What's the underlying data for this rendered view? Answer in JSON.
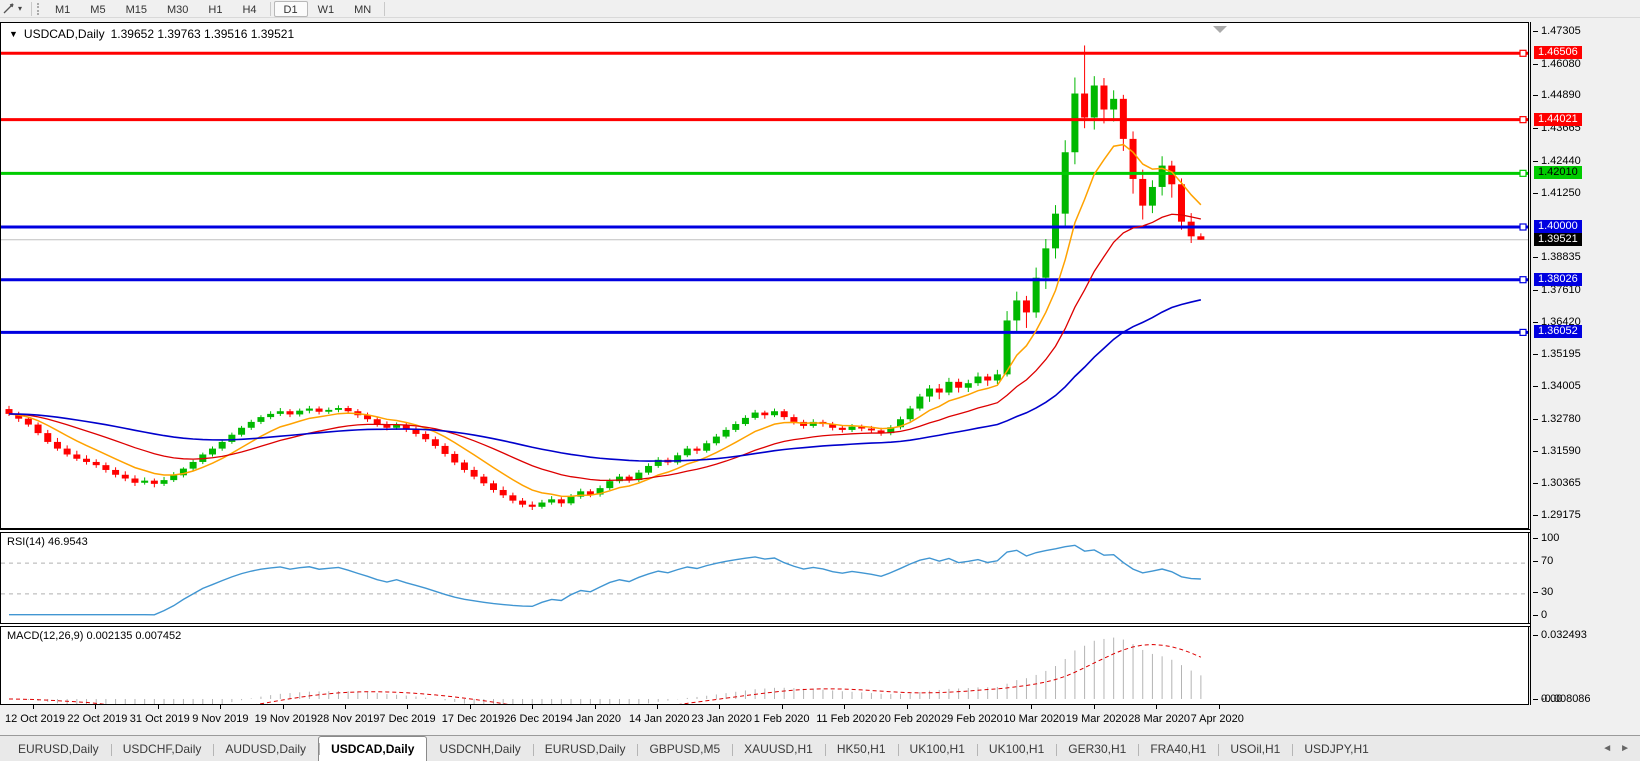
{
  "window": {
    "toolbar": {
      "timeframes": [
        "M1",
        "M5",
        "M15",
        "M30",
        "H1",
        "H4",
        "D1",
        "W1",
        "MN"
      ],
      "active_timeframe": "D1",
      "group_breaks_after": [
        "H4"
      ]
    },
    "tabs": {
      "items": [
        "EURUSD,Daily",
        "USDCHF,Daily",
        "AUDUSD,Daily",
        "USDCAD,Daily",
        "USDCNH,Daily",
        "EURUSD,Daily",
        "GBPUSD,M5",
        "XAUUSD,H1",
        "HK50,H1",
        "UK100,H1",
        "UK100,H1",
        "GER30,H1",
        "FRA40,H1",
        "USOil,H1",
        "USDJPY,H1"
      ],
      "active_index": 3
    }
  },
  "chart_title": {
    "symbol": "USDCAD,Daily",
    "ohlc": "1.39652 1.39763 1.39516 1.39521"
  },
  "chart_data": {
    "type": "candlestick",
    "symbol": "USDCAD",
    "timeframe": "Daily",
    "colors": {
      "up": "#00b800",
      "down": "#ff0000",
      "bg": "#ffffff",
      "current_price_line": "#c0c0c0",
      "ema_fast": "#ffa200",
      "ema_mid": "#dd0000",
      "ema_slow": "#0000cc",
      "rsi_line": "#4196d2",
      "rsi_level_dash": "#b0b0b0",
      "macd_bar": "#b4b4b4",
      "macd_signal": "#dd0000"
    },
    "y_axis": {
      "ticks": [
        "1.47305",
        "1.46080",
        "1.44890",
        "1.43665",
        "1.42440",
        "1.41250",
        "1.38835",
        "1.37610",
        "1.36420",
        "1.35195",
        "1.34005",
        "1.32780",
        "1.31590",
        "1.30365",
        "1.29175"
      ],
      "range_top": 1.47641,
      "range_bottom": 1.28726
    },
    "levels": [
      {
        "price": 1.46506,
        "label": "1.46506",
        "color": "#ff0000",
        "text_color": "#ffffff",
        "width": 3
      },
      {
        "price": 1.44021,
        "label": "1.44021",
        "color": "#ff0000",
        "text_color": "#ffffff",
        "width": 3
      },
      {
        "price": 1.4201,
        "label": "1.42010",
        "color": "#00cc00",
        "text_color": "#000000",
        "width": 3
      },
      {
        "price": 1.4,
        "label": "1.40000",
        "color": "#0000e0",
        "text_color": "#ffffff",
        "width": 3
      },
      {
        "price": 1.38026,
        "label": "1.38026",
        "color": "#0000e0",
        "text_color": "#ffffff",
        "width": 3
      },
      {
        "price": 1.36052,
        "label": "1.36052",
        "color": "#0000e0",
        "text_color": "#ffffff",
        "width": 3
      }
    ],
    "current_price": {
      "value": 1.39521,
      "label": "1.39521",
      "badge_bg": "#000000",
      "badge_fg": "#ffffff"
    },
    "x_labels": [
      "12 Oct 2019",
      "22 Oct 2019",
      "31 Oct 2019",
      "9 Nov 2019",
      "19 Nov 2019",
      "28 Nov 2019",
      "7 Dec 2019",
      "17 Dec 2019",
      "26 Dec 2019",
      "4 Jan 2020",
      "14 Jan 2020",
      "23 Jan 2020",
      "1 Feb 2020",
      "11 Feb 2020",
      "20 Feb 2020",
      "29 Feb 2020",
      "10 Mar 2020",
      "19 Mar 2020",
      "28 Mar 2020",
      "7 Apr 2020"
    ],
    "overlays": [
      {
        "type": "ema",
        "period": 8,
        "color": "#ffa200",
        "width": 1.5
      },
      {
        "type": "ema",
        "period": 21,
        "color": "#dd0000",
        "width": 1.3
      },
      {
        "type": "ema",
        "period": 55,
        "color": "#0000cc",
        "width": 1.6
      }
    ],
    "rsi": {
      "label": "RSI(14) 46.9543",
      "period": 14,
      "current": "46.9543",
      "ticks": [
        100,
        70,
        30,
        0
      ],
      "dashed_levels": [
        70,
        30
      ]
    },
    "macd": {
      "label": "MACD(12,26,9) 0.002135 0.007452",
      "fast": 12,
      "slow": 26,
      "signal": 9,
      "current_main": "0.002135",
      "current_signal": "0.007452",
      "ticks": [
        "0.032493",
        "0.00",
        "-0.008086"
      ],
      "range_max": 0.032493,
      "range_min": -0.008086
    },
    "candles": [
      [
        1.3318,
        1.333,
        1.3292,
        1.33
      ],
      [
        1.33,
        1.3308,
        1.327,
        1.3282
      ],
      [
        1.3282,
        1.329,
        1.3252,
        1.326
      ],
      [
        1.326,
        1.3268,
        1.322,
        1.3228
      ],
      [
        1.3228,
        1.324,
        1.3188,
        1.3195
      ],
      [
        1.3195,
        1.321,
        1.3162,
        1.317
      ],
      [
        1.317,
        1.3182,
        1.314,
        1.3148
      ],
      [
        1.3148,
        1.3162,
        1.3124,
        1.3132
      ],
      [
        1.3132,
        1.3145,
        1.311,
        1.312
      ],
      [
        1.312,
        1.313,
        1.3098,
        1.3108
      ],
      [
        1.3108,
        1.3118,
        1.308,
        1.309
      ],
      [
        1.309,
        1.31,
        1.3062,
        1.3072
      ],
      [
        1.3072,
        1.3085,
        1.3048,
        1.3058
      ],
      [
        1.3058,
        1.307,
        1.303,
        1.3042
      ],
      [
        1.3042,
        1.3062,
        1.3035,
        1.305
      ],
      [
        1.305,
        1.3058,
        1.3025,
        1.3038
      ],
      [
        1.3038,
        1.3064,
        1.303,
        1.3052
      ],
      [
        1.3052,
        1.3082,
        1.3045,
        1.307
      ],
      [
        1.307,
        1.31,
        1.3062,
        1.3095
      ],
      [
        1.3095,
        1.3128,
        1.3088,
        1.312
      ],
      [
        1.312,
        1.3155,
        1.3112,
        1.3148
      ],
      [
        1.3148,
        1.3178,
        1.314,
        1.317
      ],
      [
        1.317,
        1.3202,
        1.3162,
        1.3195
      ],
      [
        1.3195,
        1.323,
        1.3188,
        1.3222
      ],
      [
        1.3222,
        1.3255,
        1.3215,
        1.3248
      ],
      [
        1.3248,
        1.3278,
        1.324,
        1.327
      ],
      [
        1.327,
        1.3295,
        1.3262,
        1.3288
      ],
      [
        1.3288,
        1.331,
        1.328,
        1.33
      ],
      [
        1.33,
        1.3322,
        1.3292,
        1.331
      ],
      [
        1.331,
        1.3318,
        1.3288,
        1.3298
      ],
      [
        1.3298,
        1.332,
        1.329,
        1.3312
      ],
      [
        1.3312,
        1.333,
        1.3302,
        1.332
      ],
      [
        1.332,
        1.3328,
        1.3298,
        1.3308
      ],
      [
        1.3308,
        1.3324,
        1.33,
        1.3315
      ],
      [
        1.3315,
        1.3332,
        1.3306,
        1.3322
      ],
      [
        1.3322,
        1.333,
        1.33,
        1.331
      ],
      [
        1.331,
        1.3318,
        1.3285,
        1.3295
      ],
      [
        1.3295,
        1.3305,
        1.327,
        1.328
      ],
      [
        1.328,
        1.329,
        1.3252,
        1.3262
      ],
      [
        1.3262,
        1.3272,
        1.3238,
        1.3248
      ],
      [
        1.3248,
        1.3268,
        1.324,
        1.326
      ],
      [
        1.326,
        1.3268,
        1.3232,
        1.3242
      ],
      [
        1.3242,
        1.3252,
        1.3215,
        1.3225
      ],
      [
        1.3225,
        1.3235,
        1.3195,
        1.3205
      ],
      [
        1.3205,
        1.3215,
        1.317,
        1.318
      ],
      [
        1.318,
        1.319,
        1.314,
        1.315
      ],
      [
        1.315,
        1.316,
        1.3108,
        1.3118
      ],
      [
        1.3118,
        1.3128,
        1.308,
        1.309
      ],
      [
        1.309,
        1.3102,
        1.3055,
        1.3065
      ],
      [
        1.3065,
        1.3075,
        1.303,
        1.304
      ],
      [
        1.304,
        1.305,
        1.3005,
        1.3015
      ],
      [
        1.3015,
        1.3028,
        1.2985,
        1.2995
      ],
      [
        1.2995,
        1.3005,
        1.2965,
        1.2975
      ],
      [
        1.2975,
        1.2985,
        1.295,
        1.296
      ],
      [
        1.296,
        1.2972,
        1.294,
        1.2952
      ],
      [
        1.2952,
        1.2978,
        1.2945,
        1.2968
      ],
      [
        1.2968,
        1.2992,
        1.296,
        1.298
      ],
      [
        1.298,
        1.2988,
        1.2952,
        1.2965
      ],
      [
        1.2965,
        1.3,
        1.2958,
        1.299
      ],
      [
        1.299,
        1.302,
        1.2982,
        1.301
      ],
      [
        1.301,
        1.3018,
        1.2988,
        1.2998
      ],
      [
        1.2998,
        1.3032,
        1.299,
        1.3022
      ],
      [
        1.3022,
        1.3058,
        1.3015,
        1.3048
      ],
      [
        1.3048,
        1.3075,
        1.304,
        1.3065
      ],
      [
        1.3065,
        1.3072,
        1.3042,
        1.3052
      ],
      [
        1.3052,
        1.309,
        1.3045,
        1.308
      ],
      [
        1.308,
        1.3115,
        1.3072,
        1.3105
      ],
      [
        1.3105,
        1.3138,
        1.3098,
        1.3128
      ],
      [
        1.3128,
        1.3136,
        1.3108,
        1.3118
      ],
      [
        1.3118,
        1.3155,
        1.311,
        1.3145
      ],
      [
        1.3145,
        1.318,
        1.3138,
        1.317
      ],
      [
        1.317,
        1.3178,
        1.315,
        1.3162
      ],
      [
        1.3162,
        1.32,
        1.3155,
        1.319
      ],
      [
        1.319,
        1.3225,
        1.3182,
        1.3215
      ],
      [
        1.3215,
        1.325,
        1.3208,
        1.324
      ],
      [
        1.324,
        1.3272,
        1.3232,
        1.3262
      ],
      [
        1.3262,
        1.3295,
        1.3255,
        1.3285
      ],
      [
        1.3285,
        1.3315,
        1.3278,
        1.3305
      ],
      [
        1.3305,
        1.3312,
        1.3282,
        1.3295
      ],
      [
        1.3295,
        1.332,
        1.3288,
        1.331
      ],
      [
        1.331,
        1.3318,
        1.3278,
        1.3288
      ],
      [
        1.3288,
        1.3298,
        1.326,
        1.327
      ],
      [
        1.327,
        1.3278,
        1.3245,
        1.3255
      ],
      [
        1.3255,
        1.328,
        1.3248,
        1.327
      ],
      [
        1.327,
        1.3278,
        1.3252,
        1.3262
      ],
      [
        1.3262,
        1.327,
        1.3238,
        1.3248
      ],
      [
        1.3248,
        1.3258,
        1.323,
        1.324
      ],
      [
        1.324,
        1.3262,
        1.3232,
        1.3252
      ],
      [
        1.3252,
        1.326,
        1.3235,
        1.3245
      ],
      [
        1.3245,
        1.3255,
        1.3228,
        1.3238
      ],
      [
        1.3238,
        1.3248,
        1.3218,
        1.3228
      ],
      [
        1.3228,
        1.3258,
        1.322,
        1.325
      ],
      [
        1.325,
        1.329,
        1.3242,
        1.328
      ],
      [
        1.328,
        1.333,
        1.3272,
        1.332
      ],
      [
        1.332,
        1.3375,
        1.3312,
        1.3365
      ],
      [
        1.3365,
        1.3408,
        1.3345,
        1.3395
      ],
      [
        1.3395,
        1.3412,
        1.3355,
        1.338
      ],
      [
        1.338,
        1.3435,
        1.337,
        1.342
      ],
      [
        1.342,
        1.3432,
        1.338,
        1.3398
      ],
      [
        1.3398,
        1.3428,
        1.3382,
        1.3415
      ],
      [
        1.3415,
        1.3455,
        1.3405,
        1.344
      ],
      [
        1.344,
        1.345,
        1.3405,
        1.3425
      ],
      [
        1.3425,
        1.3465,
        1.3412,
        1.3448
      ],
      [
        1.3448,
        1.3685,
        1.344,
        1.365
      ],
      [
        1.365,
        1.3758,
        1.3602,
        1.3725
      ],
      [
        1.3725,
        1.3742,
        1.3622,
        1.368
      ],
      [
        1.368,
        1.3848,
        1.366,
        1.381
      ],
      [
        1.381,
        1.3955,
        1.3768,
        1.392
      ],
      [
        1.392,
        1.4082,
        1.3882,
        1.405
      ],
      [
        1.405,
        1.4325,
        1.4005,
        1.428
      ],
      [
        1.428,
        1.456,
        1.4235,
        1.45
      ],
      [
        1.45,
        1.468,
        1.437,
        1.441
      ],
      [
        1.441,
        1.4565,
        1.4365,
        1.453
      ],
      [
        1.453,
        1.4558,
        1.4388,
        1.444
      ],
      [
        1.444,
        1.4512,
        1.4395,
        1.448
      ],
      [
        1.448,
        1.4495,
        1.4285,
        1.433
      ],
      [
        1.433,
        1.4358,
        1.4125,
        1.418
      ],
      [
        1.418,
        1.4215,
        1.4028,
        1.408
      ],
      [
        1.408,
        1.4175,
        1.4052,
        1.415
      ],
      [
        1.415,
        1.4265,
        1.4118,
        1.423
      ],
      [
        1.423,
        1.4248,
        1.411,
        1.416
      ],
      [
        1.416,
        1.4182,
        1.399,
        1.402
      ],
      [
        1.402,
        1.4052,
        1.394,
        1.3965
      ],
      [
        1.39652,
        1.39763,
        1.39516,
        1.39521
      ]
    ]
  }
}
